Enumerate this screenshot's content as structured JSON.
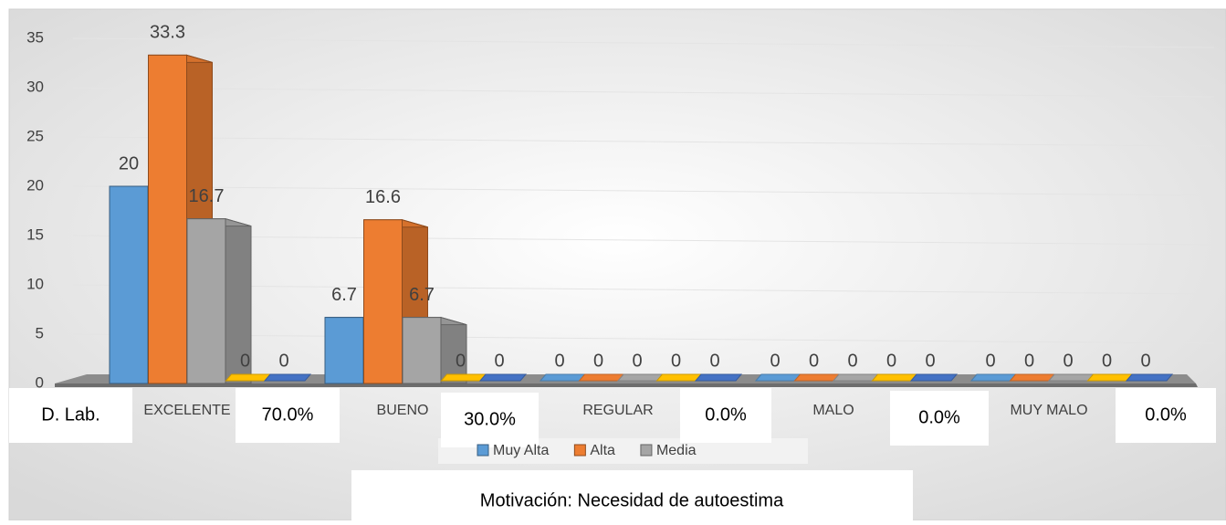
{
  "chart_data": {
    "type": "bar3d",
    "title": "Motivación: Necesidad de autoestima",
    "categories": [
      "EXCELENTE",
      "BUENO",
      "REGULAR",
      "MALO",
      "MUY MALO"
    ],
    "series": [
      {
        "name": "Muy Alta",
        "color": "#5b9bd5",
        "values": [
          20,
          6.7,
          0,
          0,
          0
        ]
      },
      {
        "name": "Alta",
        "color": "#ed7d31",
        "values": [
          33.3,
          16.6,
          0,
          0,
          0
        ]
      },
      {
        "name": "Media",
        "color": "#a5a5a5",
        "values": [
          16.7,
          6.7,
          0,
          0,
          0
        ]
      },
      {
        "color": "#ffc000",
        "values": [
          0,
          0,
          0,
          0,
          0
        ]
      },
      {
        "color": "#4472c4",
        "values": [
          0,
          0,
          0,
          0,
          0
        ]
      }
    ],
    "ylim": [
      0,
      35
    ],
    "yticks": [
      0,
      5,
      10,
      15,
      20,
      25,
      30,
      35
    ],
    "grid": true,
    "legend": "bottom",
    "boxes": [
      "D. Lab.",
      "70.0%",
      "30.0%",
      "0.0%",
      "0.0%",
      "0.0%"
    ]
  }
}
